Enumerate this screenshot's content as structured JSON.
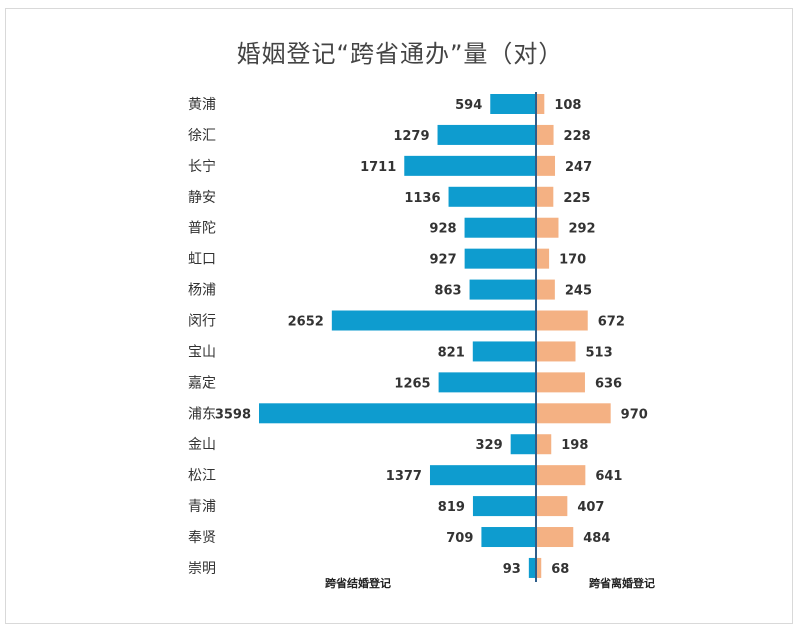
{
  "chart_data": {
    "type": "bar",
    "orientation": "horizontal-butterfly",
    "title": "婚姻登记“跨省通办”量（对）",
    "categories": [
      "黄浦",
      "徐汇",
      "长宁",
      "静安",
      "普陀",
      "虹口",
      "杨浦",
      "闵行",
      "宝山",
      "嘉定",
      "浦东",
      "金山",
      "松江",
      "青浦",
      "奉贤",
      "崇明"
    ],
    "series": [
      {
        "name": "跨省结婚登记",
        "side": "left",
        "color": "#0e9ccf",
        "values": [
          594,
          1279,
          1711,
          1136,
          928,
          927,
          863,
          2652,
          821,
          1265,
          3598,
          329,
          1377,
          819,
          709,
          93
        ]
      },
      {
        "name": "跨省离婚登记",
        "side": "right",
        "color": "#f4b183",
        "values": [
          108,
          228,
          247,
          225,
          292,
          170,
          245,
          672,
          513,
          636,
          970,
          198,
          641,
          407,
          484,
          68
        ]
      }
    ],
    "axis_color": "#2e5d8a",
    "grid": false,
    "data_labels": true
  }
}
